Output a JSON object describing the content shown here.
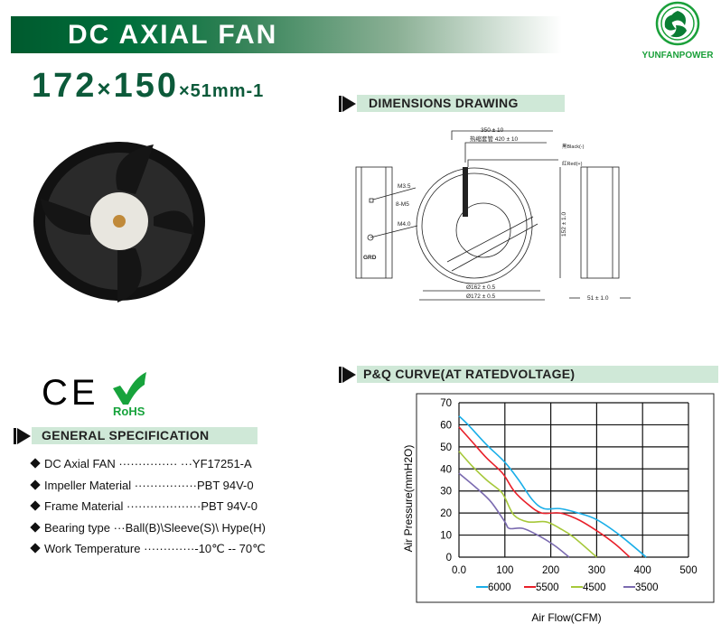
{
  "header": {
    "title": "DC AXIAL FAN",
    "size_main_a": "172",
    "size_x": "×",
    "size_main_b": "150",
    "size_sub": "×51mm-1"
  },
  "logo": {
    "text": "YUNFANPOWER",
    "color": "#1aa03a"
  },
  "certifications": {
    "ce": "CE",
    "rohs": "RoHS"
  },
  "dimensions": {
    "heading": "DIMENSIONS DRAWING",
    "labels": {
      "lead_length": "350 ± 10",
      "sleeve_length": "热缩套管 420 ± 10",
      "black_wire": "黑Black(-)",
      "red_wire": "红Red(+)",
      "m35": "M3.5",
      "m5": "8-M5",
      "m40": "M4.0",
      "grd": "GRD",
      "height": "152 ± 1.0",
      "dia162": "Ø162 ± 0.5",
      "dia172": "Ø172 ± 0.5",
      "depth": "51 ± 1.0"
    }
  },
  "spec": {
    "heading": "GENERAL SPECIFICATION",
    "items": [
      {
        "label": "DC Axial FAN",
        "dots": "··············· ···",
        "value": "YF17251-A"
      },
      {
        "label": "Impeller Material",
        "dots": "················",
        "value": "PBT 94V-0"
      },
      {
        "label": "Frame Material",
        "dots": "···················",
        "value": "PBT 94V-0"
      },
      {
        "label": "Bearing type",
        "dots": "···",
        "value": "Ball(B)\\Sleeve(S)\\ Hype(H)"
      },
      {
        "label": "Work Temperature",
        "dots": "·············",
        "value": "-10℃ -- 70℃"
      }
    ]
  },
  "chart_data": {
    "type": "line",
    "heading": "P&Q CURVE(AT RATEDVOLTAGE)",
    "xlabel": "Air Flow(CFM)",
    "ylabel": "Air Pressure(mmH2O)",
    "xlim": [
      0,
      500
    ],
    "ylim": [
      0,
      70
    ],
    "xticks": [
      "0.0",
      "100",
      "200",
      "300",
      "400",
      "500"
    ],
    "yticks": [
      "0",
      "10",
      "20",
      "30",
      "40",
      "50",
      "60",
      "70"
    ],
    "grid": true,
    "legend": "bottom",
    "series": [
      {
        "name": "6000",
        "color": "#1aaee8",
        "points": [
          [
            0,
            64
          ],
          [
            20,
            60
          ],
          [
            60,
            51
          ],
          [
            100,
            43
          ],
          [
            130,
            35
          ],
          [
            160,
            26
          ],
          [
            185,
            22
          ],
          [
            220,
            22
          ],
          [
            260,
            20
          ],
          [
            300,
            17
          ],
          [
            350,
            10
          ],
          [
            408,
            0
          ]
        ]
      },
      {
        "name": "5500",
        "color": "#e8202a",
        "points": [
          [
            0,
            59
          ],
          [
            30,
            52
          ],
          [
            60,
            45
          ],
          [
            95,
            38
          ],
          [
            120,
            30
          ],
          [
            150,
            24
          ],
          [
            180,
            20
          ],
          [
            220,
            20
          ],
          [
            260,
            17
          ],
          [
            300,
            12
          ],
          [
            340,
            6
          ],
          [
            372,
            0
          ]
        ]
      },
      {
        "name": "4500",
        "color": "#a6c83a",
        "points": [
          [
            0,
            48
          ],
          [
            30,
            41
          ],
          [
            60,
            35
          ],
          [
            90,
            30
          ],
          [
            100,
            27
          ],
          [
            120,
            19
          ],
          [
            150,
            16
          ],
          [
            190,
            16
          ],
          [
            220,
            13
          ],
          [
            250,
            9
          ],
          [
            300,
            0
          ]
        ]
      },
      {
        "name": "3500",
        "color": "#7b6bb0",
        "points": [
          [
            0,
            38
          ],
          [
            40,
            31
          ],
          [
            70,
            25
          ],
          [
            100,
            16
          ],
          [
            110,
            13
          ],
          [
            140,
            13
          ],
          [
            180,
            9
          ],
          [
            210,
            5
          ],
          [
            240,
            0
          ]
        ]
      }
    ]
  }
}
